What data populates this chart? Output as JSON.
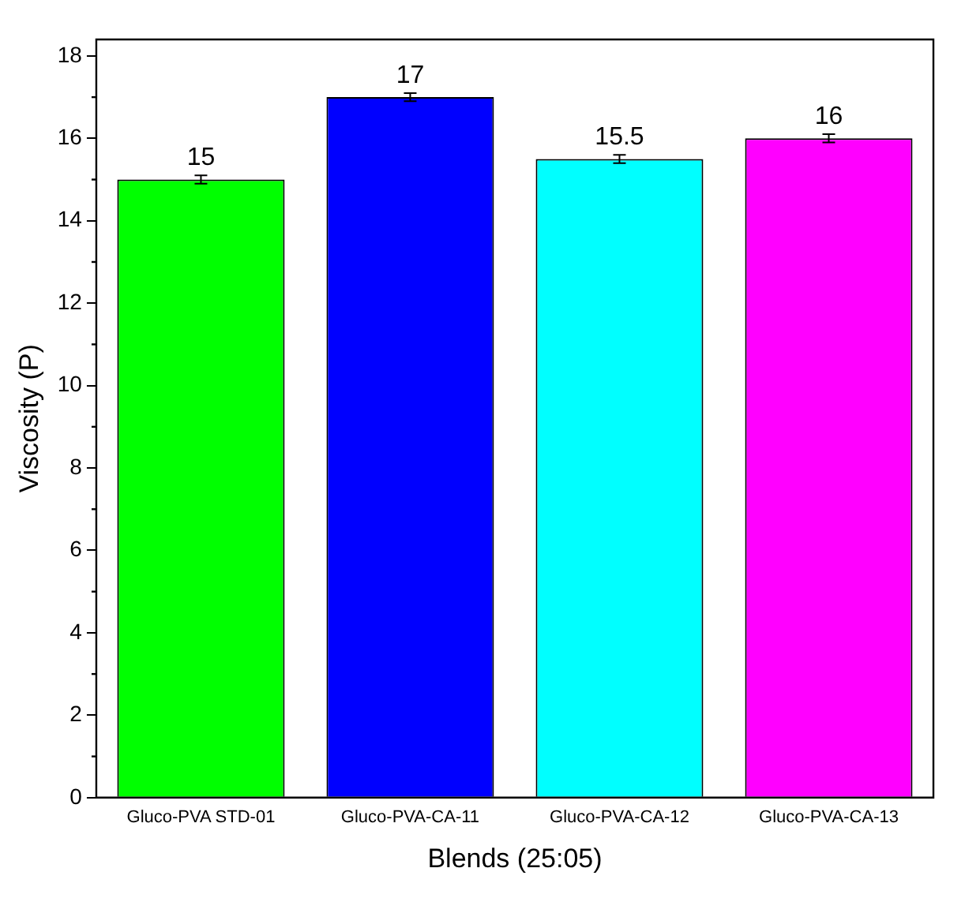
{
  "chart_data": {
    "type": "bar",
    "xlabel": "Blends (25:05)",
    "ylabel": "Viscosity (P)",
    "categories": [
      "Gluco-PVA STD-01",
      "Gluco-PVA-CA-11",
      "Gluco-PVA-CA-12",
      "Gluco-PVA-CA-13"
    ],
    "values": [
      15,
      17,
      15.5,
      16
    ],
    "colors": [
      "#00ff00",
      "#0000ff",
      "#00ffff",
      "#ff00ff"
    ],
    "errors": [
      0.1,
      0.1,
      0.1,
      0.1
    ],
    "value_labels": [
      "15",
      "17",
      "15.5",
      "16"
    ],
    "ylim": [
      0,
      18.4
    ],
    "yticks": [
      0,
      2,
      4,
      6,
      8,
      10,
      12,
      14,
      16,
      18
    ],
    "grid": false,
    "legend": false
  }
}
